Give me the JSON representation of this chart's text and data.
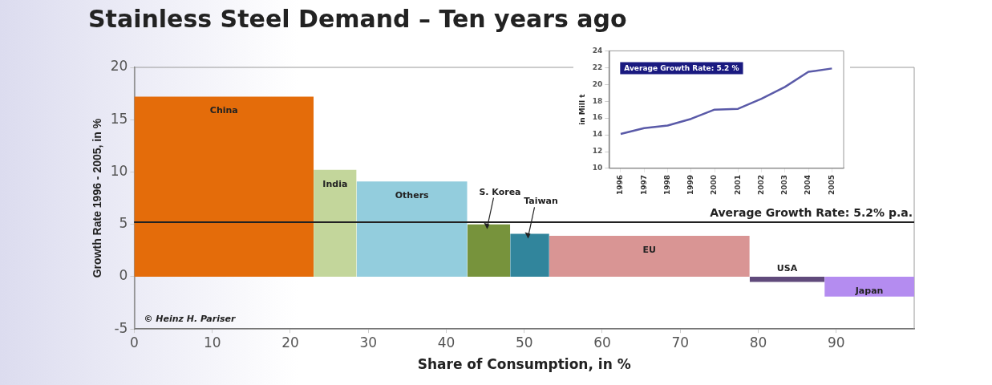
{
  "chart_data": [
    {
      "type": "area",
      "title": "Stainless Steel Demand – Ten years ago",
      "xlabel": "Share of Consumption, in %",
      "ylabel": "Growth Rate 1996 - 2005, in %",
      "xlim": [
        0,
        100
      ],
      "xticks": [
        0,
        10,
        20,
        30,
        40,
        50,
        60,
        70,
        80,
        90
      ],
      "ylim": [
        -5,
        20
      ],
      "yticks": [
        -5,
        0,
        5,
        10,
        15,
        20
      ],
      "grid": false,
      "legend": false,
      "series": [
        {
          "name": "China",
          "color": "#e46c0a",
          "x": [
            0,
            23
          ],
          "values": [
            17.2,
            17.2
          ]
        },
        {
          "name": "India",
          "color": "#c3d69b",
          "x": [
            23,
            28.5
          ],
          "values": [
            10.2,
            10.2
          ]
        },
        {
          "name": "Others",
          "color": "#93cddd",
          "x": [
            28.5,
            42.7
          ],
          "values": [
            9.1,
            9.1
          ]
        },
        {
          "name": "S. Korea",
          "color": "#77933c",
          "x": [
            42.7,
            48.2
          ],
          "values": [
            5.0,
            5.0
          ]
        },
        {
          "name": "Taiwan",
          "color": "#31859c",
          "x": [
            48.2,
            53.2
          ],
          "values": [
            4.1,
            4.1
          ]
        },
        {
          "name": "EU",
          "color": "#d99594",
          "x": [
            53.2,
            78.9
          ],
          "values": [
            3.9,
            3.9
          ]
        },
        {
          "name": "USA",
          "color": "#604a7b",
          "x": [
            78.9,
            88.5
          ],
          "values": [
            -0.5,
            -0.5
          ]
        },
        {
          "name": "Japan",
          "color": "#b48cf0",
          "x": [
            88.5,
            100
          ],
          "values": [
            -1.9,
            -1.9
          ]
        }
      ],
      "ref_lines": [
        {
          "axis": "y",
          "value": 5.2,
          "label": "Average Growth Rate: 5.2% p.a.",
          "color": "#222222"
        }
      ],
      "annotations": [
        "© Heinz H. Pariser"
      ]
    },
    {
      "type": "line",
      "ylabel": "in Mill t",
      "categories": [
        "1996",
        "1997",
        "1998",
        "1999",
        "2000",
        "2001",
        "2002",
        "2003",
        "2004",
        "2005"
      ],
      "ylim": [
        10,
        24
      ],
      "yticks": [
        10,
        12,
        14,
        16,
        18,
        20,
        22,
        24
      ],
      "grid": false,
      "legend": false,
      "series": [
        {
          "color": "#5a5aa8",
          "values": [
            14.1,
            14.8,
            15.1,
            15.9,
            17.0,
            17.1,
            18.3,
            19.7,
            21.5,
            21.9
          ]
        }
      ],
      "annotations": [
        "Average Growth Rate: 5.2 %"
      ]
    }
  ]
}
